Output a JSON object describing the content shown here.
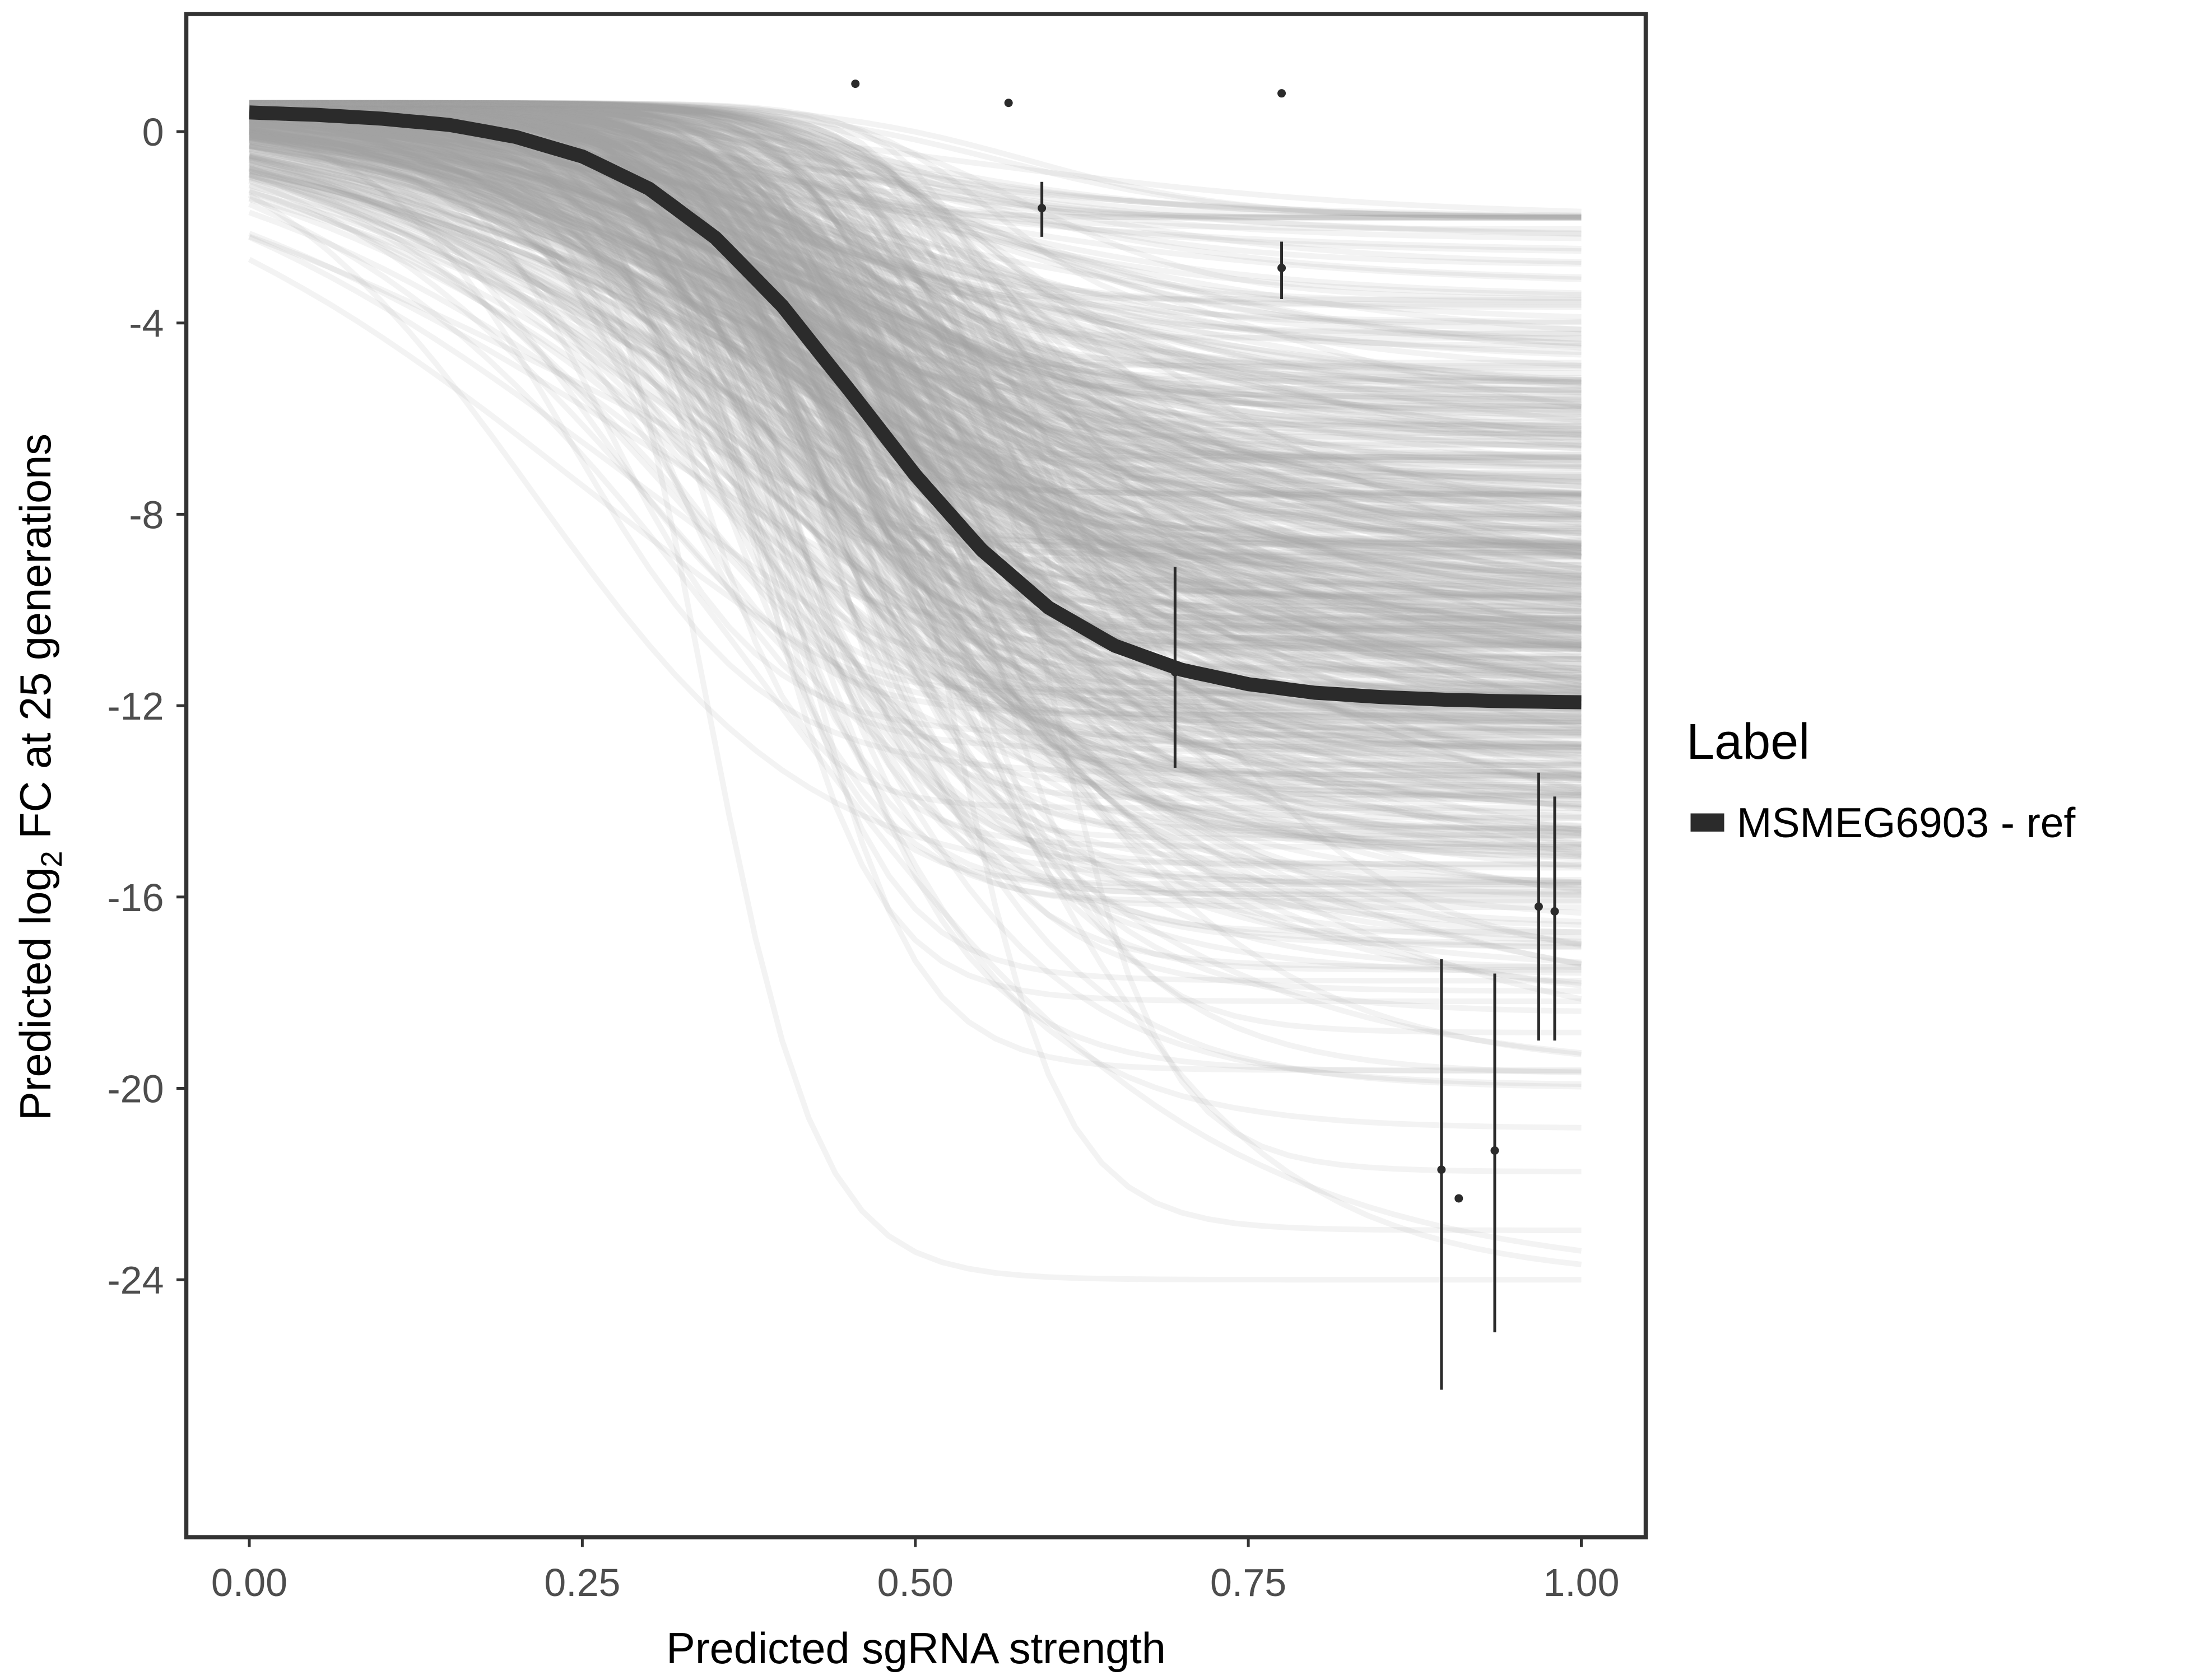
{
  "chart_data": {
    "type": "line",
    "title": "",
    "xlabel": "Predicted sgRNA strength",
    "ylabel": {
      "prefix": "Predicted  log",
      "subscript": "2",
      "suffix": " FC at 25 generations"
    },
    "xlim": [
      -0.05,
      1.05
    ],
    "ylim": [
      -29.4,
      2.5
    ],
    "x_ticks": [
      0,
      0.25,
      0.5,
      0.75,
      1
    ],
    "x_tick_labels": [
      "0.00",
      "0.25",
      "0.50",
      "0.75",
      "1.00"
    ],
    "y_ticks": [
      0,
      -4,
      -8,
      -12,
      -16,
      -20,
      -24
    ],
    "y_tick_labels": [
      "0",
      "-4",
      "-8",
      "-12",
      "-16",
      "-20",
      "-24"
    ],
    "grid": false,
    "legend": {
      "title": "Label",
      "placement": "right",
      "entries": [
        {
          "label": "MSMEG6903 - ref",
          "color": "#2b2b2b"
        }
      ]
    },
    "fit_line": {
      "name": "MSMEG6903 - ref",
      "color": "#2b2b2b",
      "x": [
        0,
        0.05,
        0.1,
        0.15,
        0.2,
        0.25,
        0.3,
        0.35,
        0.4,
        0.45,
        0.5,
        0.55,
        0.6,
        0.65,
        0.7,
        0.75,
        0.8,
        0.85,
        0.9,
        0.95,
        1
      ],
      "y": [
        0.4,
        0.35,
        0.27,
        0.14,
        -0.11,
        -0.52,
        -1.19,
        -2.22,
        -3.64,
        -5.39,
        -7.18,
        -8.75,
        -9.95,
        -10.75,
        -11.25,
        -11.55,
        -11.73,
        -11.82,
        -11.88,
        -11.91,
        -11.93
      ]
    },
    "posterior_draws": {
      "count": 600,
      "color": "#a6a6a6",
      "upper_plateau": 0.6,
      "lower_plateau_mean": -11,
      "lower_plateau_sd": 4.2,
      "midpoint_mean": 0.45,
      "midpoint_sd": 0.07,
      "steepness_range": [
        0.04,
        0.22
      ]
    },
    "points": [
      {
        "x": 0.455,
        "y": 1.0
      },
      {
        "x": 0.57,
        "y": 0.6
      },
      {
        "x": 0.595,
        "y": -1.6,
        "ymin": -2.2,
        "ymax": -1.05
      },
      {
        "x": 0.695,
        "y": -11.3,
        "ymin": -13.3,
        "ymax": -9.1
      },
      {
        "x": 0.775,
        "y": 0.8
      },
      {
        "x": 0.775,
        "y": -2.85,
        "ymin": -3.5,
        "ymax": -2.3
      },
      {
        "x": 0.895,
        "y": -21.7,
        "ymin": -26.3,
        "ymax": -17.3
      },
      {
        "x": 0.908,
        "y": -22.3
      },
      {
        "x": 0.935,
        "y": -21.3,
        "ymin": -25.1,
        "ymax": -17.6
      },
      {
        "x": 0.968,
        "y": -16.2,
        "ymin": -19.0,
        "ymax": -13.4
      },
      {
        "x": 0.98,
        "y": -16.3,
        "ymin": -19.0,
        "ymax": -13.9
      }
    ]
  }
}
